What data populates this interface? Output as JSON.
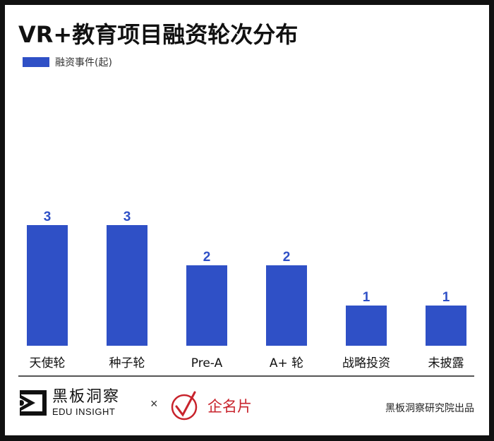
{
  "chart_data": {
    "type": "bar",
    "title": "VR+教育项目融资轮次分布",
    "legend": [
      "融资事件(起)"
    ],
    "legend_placement": "top-left",
    "categories": [
      "天使轮",
      "种子轮",
      "Pre-A",
      "A+ 轮",
      "战略投资",
      "未披露"
    ],
    "series": [
      {
        "name": "融资事件(起)",
        "values": [
          3,
          3,
          2,
          2,
          1,
          1
        ]
      }
    ],
    "ylim": [
      0,
      3.15
    ],
    "xlabel": "",
    "ylabel": "",
    "grid": false,
    "bar_color": "#2f50c6"
  },
  "footer": {
    "logo_cn": "黑板洞察",
    "logo_en": "EDU INSIGHT",
    "times": "×",
    "partner": "企名片",
    "credit": "黑板洞察研究院出品"
  }
}
